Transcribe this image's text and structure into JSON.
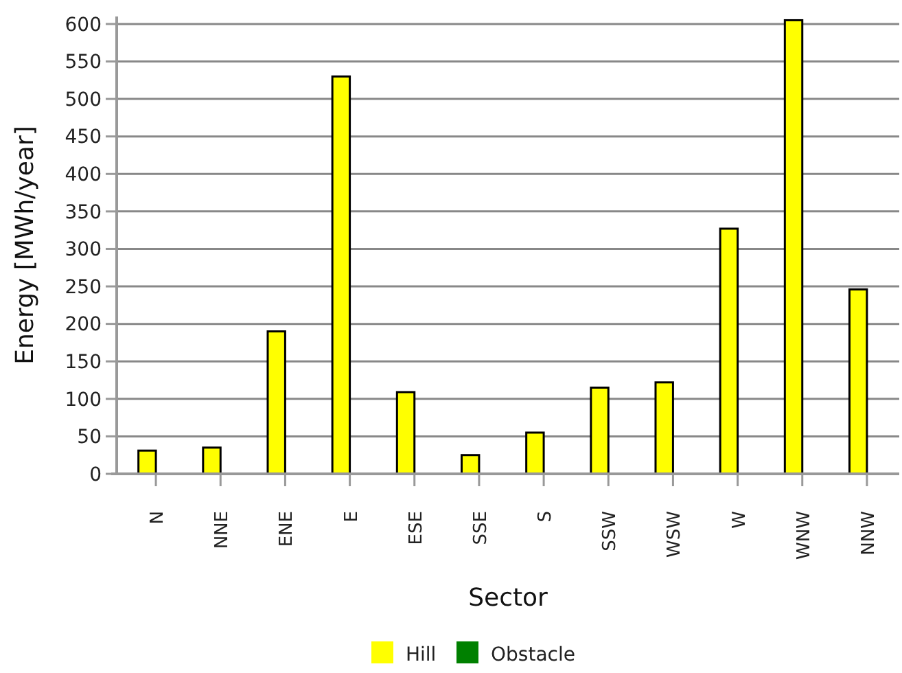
{
  "chart_data": {
    "type": "bar",
    "xlabel": "Sector",
    "ylabel": "Energy [MWh/year]",
    "categories": [
      "N",
      "NNE",
      "ENE",
      "E",
      "ESE",
      "SSE",
      "S",
      "SSW",
      "WSW",
      "W",
      "WNW",
      "NNW"
    ],
    "series": [
      {
        "name": "Hill",
        "color": "#ffff00",
        "values": [
          31,
          35,
          190,
          530,
          109,
          25,
          55,
          115,
          122,
          327,
          605,
          246
        ]
      },
      {
        "name": "Obstacle",
        "color": "#008000",
        "values": [
          0,
          0,
          0,
          0,
          0,
          0,
          0,
          0,
          0,
          0,
          0,
          0
        ]
      }
    ],
    "ylim": [
      0,
      610
    ],
    "yticks": [
      0,
      50,
      100,
      150,
      200,
      250,
      300,
      350,
      400,
      450,
      500,
      550,
      600
    ],
    "grid": "y",
    "legend": "bottom"
  }
}
